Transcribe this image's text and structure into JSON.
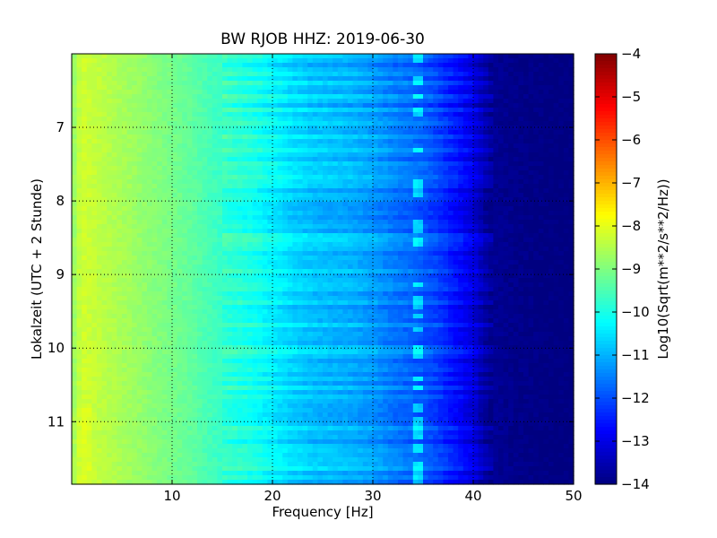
{
  "chart_data": {
    "type": "heatmap",
    "title": "BW RJOB HHZ: 2019-06-30",
    "xlabel": "Frequency [Hz]",
    "ylabel": "Lokalzeit (UTC + 2 Stunde)",
    "xlim": [
      0,
      50
    ],
    "ylim": [
      6.0,
      11.85
    ],
    "y_inverted": true,
    "xticks": [
      10,
      20,
      30,
      40,
      50
    ],
    "yticks": [
      7,
      8,
      9,
      10,
      11
    ],
    "grid": true,
    "colormap": "jet",
    "colorbar": {
      "label": "Log10(Sqrt(m**2/s**2/Hz))",
      "range": [
        -14,
        -4
      ],
      "ticks": [
        -4,
        -5,
        -6,
        -7,
        -8,
        -9,
        -10,
        -11,
        -12,
        -13,
        -14
      ]
    },
    "frequency_profile": {
      "freq_hz": [
        0,
        1,
        2,
        4,
        6,
        8,
        10,
        12,
        14,
        16,
        18,
        20,
        22,
        24,
        26,
        28,
        30,
        32,
        34,
        36,
        38,
        40,
        41,
        42,
        44,
        46,
        48,
        50
      ],
      "log10_amplitude": [
        -8.9,
        -8.2,
        -8.3,
        -8.5,
        -8.7,
        -8.9,
        -9.1,
        -9.3,
        -9.6,
        -9.8,
        -10.0,
        -10.3,
        -10.6,
        -10.8,
        -10.9,
        -11.0,
        -11.2,
        -11.5,
        -11.7,
        -12.0,
        -12.5,
        -13.0,
        -13.5,
        -13.8,
        -13.9,
        -13.95,
        -14.0,
        -14.0
      ]
    },
    "spectral_line_hz": 34.5
  }
}
